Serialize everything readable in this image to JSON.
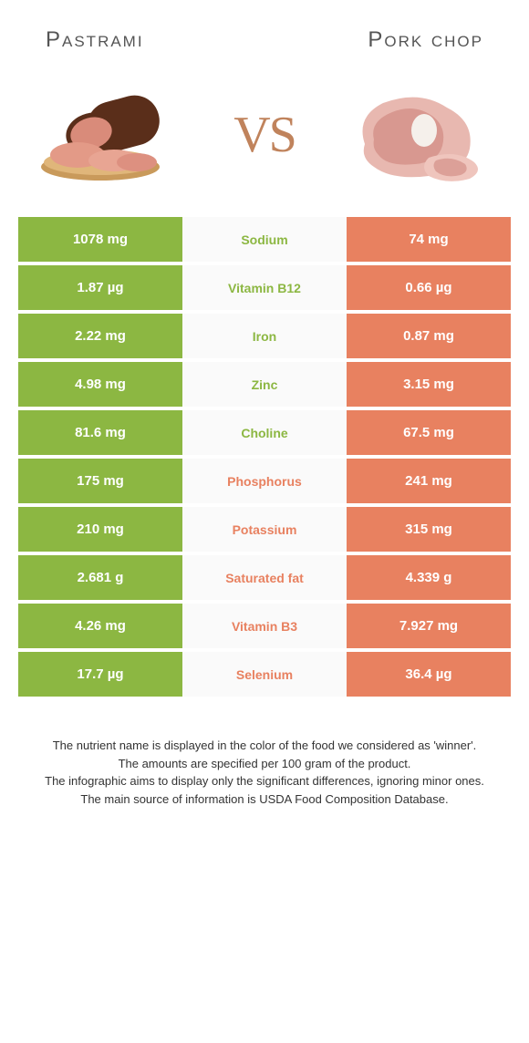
{
  "foods": {
    "left": {
      "name": "Pastrami",
      "color": "#8cb742"
    },
    "right": {
      "name": "Pork chop",
      "color": "#e88160"
    }
  },
  "vs_label": "VS",
  "vs_color": "#c0835c",
  "background_color": "#ffffff",
  "table": {
    "left_color": "#8cb742",
    "right_color": "#e88160",
    "mid_bg": "#fafafa",
    "text_color_cell": "#ffffff",
    "rows": [
      {
        "left": "1078 mg",
        "label": "Sodium",
        "right": "74 mg",
        "winner": "left"
      },
      {
        "left": "1.87 µg",
        "label": "Vitamin B12",
        "right": "0.66 µg",
        "winner": "left"
      },
      {
        "left": "2.22 mg",
        "label": "Iron",
        "right": "0.87 mg",
        "winner": "left"
      },
      {
        "left": "4.98 mg",
        "label": "Zinc",
        "right": "3.15 mg",
        "winner": "left"
      },
      {
        "left": "81.6 mg",
        "label": "Choline",
        "right": "67.5 mg",
        "winner": "left"
      },
      {
        "left": "175 mg",
        "label": "Phosphorus",
        "right": "241 mg",
        "winner": "right"
      },
      {
        "left": "210 mg",
        "label": "Potassium",
        "right": "315 mg",
        "winner": "right"
      },
      {
        "left": "2.681 g",
        "label": "Saturated fat",
        "right": "4.339 g",
        "winner": "right"
      },
      {
        "left": "4.26 mg",
        "label": "Vitamin B3",
        "right": "7.927 mg",
        "winner": "right"
      },
      {
        "left": "17.7 µg",
        "label": "Selenium",
        "right": "36.4 µg",
        "winner": "right"
      }
    ]
  },
  "caption": {
    "lines": [
      "The nutrient name is displayed in the color of the food we considered as 'winner'.",
      "The amounts are specified per 100 gram of the product.",
      "The infographic aims to display only the significant differences, ignoring minor ones.",
      "The main source of information is USDA Food Composition Database."
    ],
    "fontsize": 13,
    "color": "#333333"
  },
  "typography": {
    "title_fontsize": 24,
    "title_color": "#555555",
    "cell_fontsize": 15,
    "label_fontsize": 14,
    "vs_fontsize": 56
  }
}
